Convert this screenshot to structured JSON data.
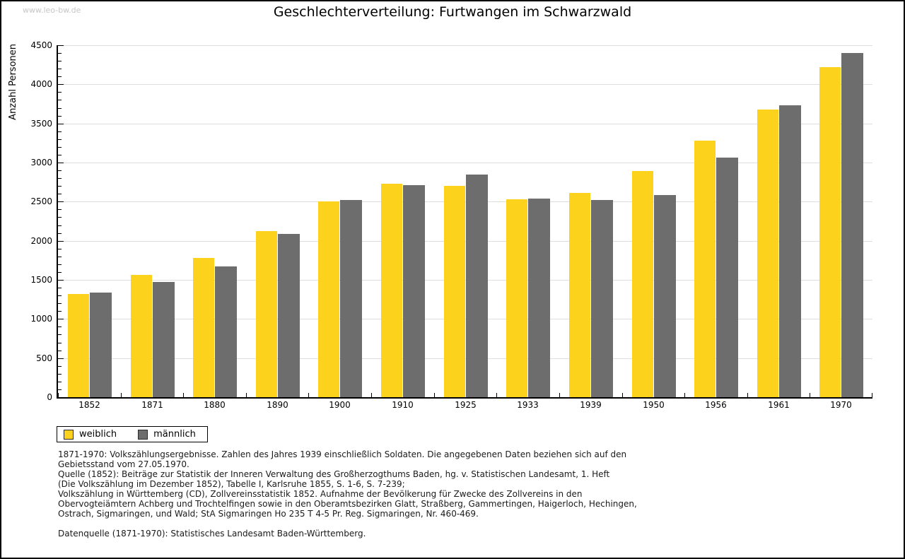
{
  "watermark": "www.leo-bw.de",
  "chart_data": {
    "type": "bar",
    "title": "Geschlechterverteilung: Furtwangen im Schwarzwald",
    "xlabel": "",
    "ylabel": "Anzahl Personen",
    "categories": [
      "1852",
      "1871",
      "1880",
      "1890",
      "1900",
      "1910",
      "1925",
      "1933",
      "1939",
      "1950",
      "1956",
      "1961",
      "1970"
    ],
    "series": [
      {
        "name": "weiblich",
        "color": "#FCD21D",
        "values": [
          1320,
          1560,
          1780,
          2120,
          2500,
          2730,
          2700,
          2530,
          2610,
          2890,
          3280,
          3675,
          4220
        ]
      },
      {
        "name": "männlich",
        "color": "#6D6D6D",
        "values": [
          1335,
          1470,
          1670,
          2090,
          2525,
          2710,
          2845,
          2540,
          2520,
          2585,
          3065,
          3730,
          4400
        ]
      }
    ],
    "ylim": [
      0,
      4500
    ],
    "ytick_step": 500,
    "ytick_minor_step": 100,
    "grid": true,
    "legend_position": "bottom-left"
  },
  "colors": {
    "grid": "#dedede",
    "axis": "#000000",
    "watermark_text": "#c6c6c6"
  },
  "footnotes": [
    "1871-1970: Volkszählungsergebnisse. Zahlen des Jahres 1939 einschließlich Soldaten. Die angegebenen Daten beziehen sich auf den",
    "Gebietsstand vom 27.05.1970.",
    "Quelle (1852): Beiträge zur Statistik der Inneren Verwaltung des Großherzogthums Baden, hg. v. Statistischen Landesamt, 1. Heft",
    "(Die Volkszählung im Dezember 1852), Tabelle I, Karlsruhe 1855, S. 1-6, S. 7-239;",
    "Volkszählung in Württemberg (CD), Zollvereinsstatistik 1852. Aufnahme der Bevölkerung für Zwecke des Zollvereins in den",
    "Obervogteiämtern Achberg und Trochtelfingen sowie in den Oberamtsbezirken Glatt, Straßberg, Gammertingen, Haigerloch, Hechingen,",
    "Ostrach, Sigmaringen, und Wald; StA Sigmaringen Ho 235 T 4-5 Pr. Reg. Sigmaringen, Nr. 460-469.",
    "",
    "Datenquelle (1871-1970): Statistisches Landesamt Baden-Württemberg."
  ]
}
